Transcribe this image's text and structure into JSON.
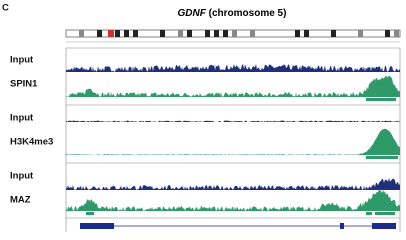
{
  "panel": {
    "letter": "C",
    "title_gene": "GDNF",
    "title_rest": " (chromosome 5)"
  },
  "tracks": [
    {
      "label": "Input"
    },
    {
      "label": "SPIN1"
    },
    {
      "label": "Input"
    },
    {
      "label": "H3K4me3"
    },
    {
      "label": "Input"
    },
    {
      "label": "MAZ"
    }
  ]
}
